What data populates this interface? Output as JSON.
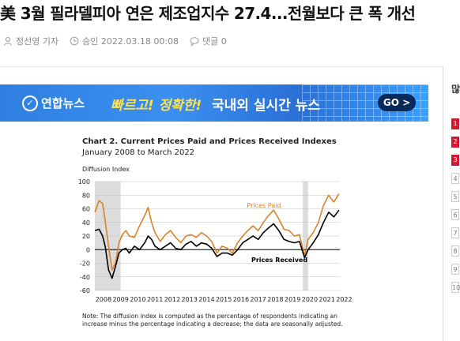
{
  "article": {
    "headline": "美 3월 필라델피아 연은 제조업지수 27.4...전월보다 큰 폭 개선",
    "author": "정선영 기자",
    "approved": "승인 2022.03.18 00:08",
    "comments": "댓글 0"
  },
  "banner": {
    "logo": "연합뉴스",
    "slogan_1": "빠르고! 정확한!",
    "slogan_2": "국내외 실시간 뉴스",
    "cta": "GO >"
  },
  "sidebar": {
    "title": "많",
    "ranks": [
      "1",
      "2",
      "3",
      "4",
      "5",
      "6",
      "7",
      "8",
      "9",
      "10"
    ]
  },
  "chart_data": {
    "type": "line",
    "title": "Chart 2. Current Prices Paid and Prices Received Indexes",
    "subtitle": "January 2008 to March 2022",
    "ylabel": "Diffusion Index",
    "xlabel": "",
    "ylim": [
      -60,
      100
    ],
    "yticks": [
      -60,
      -40,
      -20,
      0,
      20,
      40,
      60,
      80,
      100
    ],
    "xlim": [
      2008,
      2022.25
    ],
    "xticks": [
      "2008",
      "2009",
      "2010",
      "2011",
      "2012",
      "2013",
      "2014",
      "2015",
      "2016",
      "2017",
      "2018",
      "2019",
      "2020",
      "2021",
      "2022"
    ],
    "recessions": [
      [
        2008.0,
        2009.5
      ],
      [
        2020.1,
        2020.4
      ]
    ],
    "grid": true,
    "colors": {
      "prices_paid": "#d9822b",
      "prices_received": "#000000",
      "recession": "#dcdcdc"
    },
    "series": [
      {
        "name": "Prices Paid",
        "label_at": [
          2016.85,
          62
        ],
        "x": [
          2008.0,
          2008.25,
          2008.45,
          2008.6,
          2008.8,
          2009.0,
          2009.2,
          2009.4,
          2009.6,
          2009.8,
          2010.0,
          2010.3,
          2010.6,
          2010.9,
          2011.1,
          2011.3,
          2011.5,
          2011.8,
          2012.1,
          2012.4,
          2012.7,
          2013.0,
          2013.3,
          2013.6,
          2013.9,
          2014.2,
          2014.5,
          2014.8,
          2015.1,
          2015.4,
          2015.7,
          2016.0,
          2016.3,
          2016.6,
          2016.9,
          2017.2,
          2017.5,
          2017.8,
          2018.1,
          2018.4,
          2018.7,
          2019.0,
          2019.3,
          2019.6,
          2019.9,
          2020.2,
          2020.4,
          2020.7,
          2021.0,
          2021.3,
          2021.6,
          2021.9,
          2022.2
        ],
        "values": [
          55,
          72,
          68,
          42,
          5,
          -30,
          -20,
          10,
          22,
          28,
          20,
          18,
          35,
          50,
          62,
          40,
          25,
          12,
          22,
          28,
          18,
          10,
          20,
          22,
          18,
          25,
          20,
          12,
          -5,
          5,
          2,
          -5,
          10,
          20,
          28,
          35,
          28,
          40,
          50,
          58,
          45,
          30,
          28,
          20,
          22,
          -10,
          15,
          25,
          40,
          65,
          80,
          70,
          82
        ]
      },
      {
        "name": "Prices Received",
        "label_at": [
          2017.1,
          -18
        ],
        "x": [
          2008.0,
          2008.25,
          2008.45,
          2008.6,
          2008.8,
          2009.0,
          2009.2,
          2009.4,
          2009.6,
          2009.8,
          2010.0,
          2010.3,
          2010.6,
          2010.9,
          2011.1,
          2011.3,
          2011.5,
          2011.8,
          2012.1,
          2012.4,
          2012.7,
          2013.0,
          2013.3,
          2013.6,
          2013.9,
          2014.2,
          2014.5,
          2014.8,
          2015.1,
          2015.4,
          2015.7,
          2016.0,
          2016.3,
          2016.6,
          2016.9,
          2017.2,
          2017.5,
          2017.8,
          2018.1,
          2018.4,
          2018.7,
          2019.0,
          2019.3,
          2019.6,
          2019.9,
          2020.2,
          2020.4,
          2020.7,
          2021.0,
          2021.3,
          2021.6,
          2021.9,
          2022.2
        ],
        "values": [
          28,
          30,
          20,
          5,
          -30,
          -42,
          -25,
          -5,
          0,
          2,
          -5,
          5,
          0,
          10,
          20,
          15,
          5,
          0,
          5,
          10,
          2,
          0,
          8,
          12,
          5,
          10,
          8,
          2,
          -10,
          -5,
          -5,
          -8,
          0,
          10,
          15,
          20,
          15,
          25,
          32,
          38,
          28,
          15,
          12,
          10,
          12,
          -12,
          0,
          10,
          22,
          40,
          55,
          48,
          58
        ]
      }
    ],
    "note": "Note: The diffusion index is computed as the percentage of respondents indicating an increase minus the percentage indicating a decrease; the data are seasonally adjusted."
  }
}
